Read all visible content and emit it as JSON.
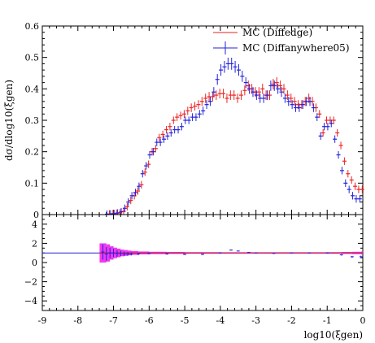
{
  "chart_data": [
    {
      "type": "scatter",
      "title": "",
      "xlabel": "log10(ξgen)",
      "ylabel": "dσ/dlog10(ξgen)",
      "xlim": [
        -9,
        0
      ],
      "ylim": [
        0,
        0.6
      ],
      "xticks": [
        -9,
        -8,
        -7,
        -6,
        -5,
        -4,
        -3,
        -2,
        -1,
        0
      ],
      "yticks": [
        0,
        0.1,
        0.2,
        0.3,
        0.4,
        0.5,
        0.6
      ],
      "legend_position": "top-right",
      "grid": false,
      "x": [
        -7.15,
        -7.05,
        -6.95,
        -6.85,
        -6.75,
        -6.65,
        -6.55,
        -6.45,
        -6.35,
        -6.25,
        -6.15,
        -6.05,
        -5.95,
        -5.85,
        -5.75,
        -5.65,
        -5.55,
        -5.45,
        -5.35,
        -5.25,
        -5.15,
        -5.05,
        -4.95,
        -4.85,
        -4.75,
        -4.65,
        -4.55,
        -4.45,
        -4.35,
        -4.25,
        -4.15,
        -4.05,
        -3.95,
        -3.85,
        -3.75,
        -3.65,
        -3.55,
        -3.45,
        -3.35,
        -3.25,
        -3.15,
        -3.05,
        -2.95,
        -2.85,
        -2.75,
        -2.65,
        -2.55,
        -2.45,
        -2.35,
        -2.25,
        -2.15,
        -2.05,
        -1.95,
        -1.85,
        -1.75,
        -1.65,
        -1.55,
        -1.45,
        -1.35,
        -1.25,
        -1.15,
        -1.05,
        -0.95,
        -0.85,
        -0.75,
        -0.65,
        -0.55,
        -0.45,
        -0.35,
        -0.25,
        -0.15,
        -0.05
      ],
      "series": [
        {
          "name": "MC (Diffedge)",
          "color": "#ee2222",
          "values": [
            0.002,
            0.003,
            0.004,
            0.006,
            0.01,
            0.025,
            0.045,
            0.06,
            0.075,
            0.095,
            0.135,
            0.16,
            0.2,
            0.21,
            0.245,
            0.255,
            0.27,
            0.28,
            0.3,
            0.31,
            0.315,
            0.32,
            0.33,
            0.34,
            0.345,
            0.35,
            0.36,
            0.37,
            0.375,
            0.375,
            0.38,
            0.385,
            0.385,
            0.37,
            0.38,
            0.38,
            0.37,
            0.38,
            0.395,
            0.41,
            0.4,
            0.39,
            0.39,
            0.4,
            0.38,
            0.38,
            0.415,
            0.42,
            0.41,
            0.4,
            0.38,
            0.37,
            0.36,
            0.35,
            0.35,
            0.36,
            0.37,
            0.36,
            0.34,
            0.32,
            0.26,
            0.3,
            0.3,
            0.3,
            0.26,
            0.22,
            0.17,
            0.13,
            0.11,
            0.09,
            0.08,
            0.08
          ]
        },
        {
          "name": "MC (Diffanywhere05)",
          "color": "#2222dd",
          "values": [
            0.001,
            0.002,
            0.003,
            0.005,
            0.009,
            0.02,
            0.04,
            0.06,
            0.07,
            0.09,
            0.13,
            0.155,
            0.19,
            0.2,
            0.23,
            0.23,
            0.24,
            0.25,
            0.26,
            0.27,
            0.27,
            0.28,
            0.3,
            0.3,
            0.31,
            0.31,
            0.32,
            0.33,
            0.35,
            0.36,
            0.39,
            0.43,
            0.46,
            0.47,
            0.48,
            0.48,
            0.47,
            0.46,
            0.44,
            0.42,
            0.4,
            0.39,
            0.38,
            0.37,
            0.37,
            0.38,
            0.41,
            0.41,
            0.4,
            0.39,
            0.37,
            0.36,
            0.35,
            0.34,
            0.34,
            0.35,
            0.36,
            0.36,
            0.34,
            0.31,
            0.25,
            0.28,
            0.28,
            0.29,
            0.24,
            0.19,
            0.14,
            0.1,
            0.08,
            0.06,
            0.05,
            0.05
          ]
        }
      ]
    },
    {
      "type": "scatter",
      "title": "",
      "xlabel": "log10(ξgen)",
      "ylabel": "",
      "xlim": [
        -9,
        0
      ],
      "ylim": [
        -5,
        5
      ],
      "xticks": [
        -9,
        -8,
        -7,
        -6,
        -5,
        -4,
        -3,
        -2,
        -1,
        0
      ],
      "yticks": [
        -4,
        -2,
        0,
        2,
        4
      ],
      "grid": false,
      "reference_line": 1,
      "x": [
        -7.3,
        -7.2,
        -7.1,
        -7.0,
        -6.9,
        -6.8,
        -6.7,
        -6.6,
        -6.5,
        -6.3,
        -6.0,
        -5.5,
        -5.0,
        -4.5,
        -4.0,
        -3.7,
        -3.5,
        -3.2,
        -3.0,
        -2.5,
        -2.0,
        -1.5,
        -1.0,
        -0.6,
        -0.3,
        -0.05
      ],
      "band_halfwidth": [
        1.0,
        0.9,
        0.7,
        0.55,
        0.45,
        0.35,
        0.3,
        0.25,
        0.2,
        0.15,
        0.12,
        0.1,
        0.08,
        0.08,
        0.07,
        0.07,
        0.07,
        0.07,
        0.07,
        0.07,
        0.07,
        0.07,
        0.08,
        0.1,
        0.12,
        0.15
      ],
      "series": [
        {
          "name": "MC (Diffanywhere05)",
          "color": "#2222dd",
          "values": [
            1.1,
            0.9,
            1.0,
            1.0,
            0.95,
            0.95,
            0.9,
            0.9,
            0.9,
            0.9,
            0.95,
            0.9,
            0.85,
            0.85,
            1.0,
            1.3,
            1.2,
            1.05,
            1.0,
            0.95,
            1.0,
            1.0,
            1.0,
            0.8,
            0.6,
            0.6
          ]
        }
      ]
    }
  ],
  "main_legend": [
    "MC (Diffedge)",
    "MC (Diffanywhere05)"
  ]
}
